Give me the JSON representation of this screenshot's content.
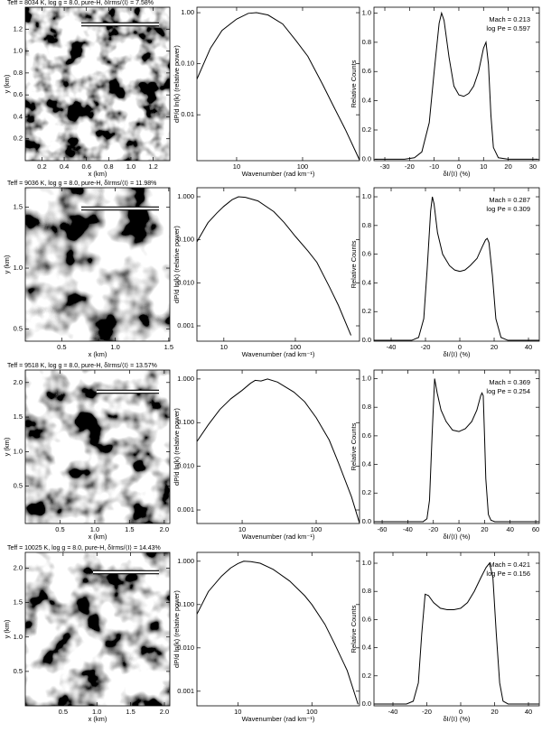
{
  "chart_data": [
    {
      "type": "image",
      "title": "Teff = 8034 K, log g = 8.0, pure-H, δIrms/⟨I⟩ = 7.58%",
      "xlabel": "x (km)",
      "ylabel": "y (km)",
      "xlim": [
        0.05,
        1.35
      ],
      "ylim": [
        0,
        1.4
      ],
      "xticks": [
        0.2,
        0.4,
        0.6,
        0.8,
        {
          "value": 1,
          "label": "1.0"
        },
        1.2
      ],
      "yticks": [
        0.2,
        0.4,
        0.6,
        0.8,
        {
          "value": 1,
          "label": "1.0"
        },
        1.2
      ]
    },
    {
      "type": "line",
      "xlabel": "Wavenumber (rad km⁻¹)",
      "ylabel": "dP/d ln(k) (relative power)",
      "xscale": "log",
      "yscale": "log",
      "xlim": [
        2.5,
        730
      ],
      "ylim": [
        0.00126,
        1.28
      ],
      "xticks": [
        10,
        100
      ],
      "yticks": [
        {
          "value": 1,
          "label": "1.00"
        },
        {
          "value": 0.1,
          "label": "0.10"
        },
        {
          "value": 0.01,
          "label": "0.01"
        }
      ],
      "x": [
        2.5,
        4,
        6,
        10,
        15,
        20,
        30,
        50,
        80,
        120,
        200,
        300,
        450,
        730
      ],
      "values": [
        0.05,
        0.2,
        0.45,
        0.75,
        0.97,
        1.0,
        0.9,
        0.6,
        0.28,
        0.14,
        0.04,
        0.014,
        0.005,
        0.0013
      ]
    },
    {
      "type": "line",
      "xlabel": "δI/⟨I⟩ (%)",
      "ylabel": "Relative Counts",
      "annotations": [
        "Mach = 0.213",
        "log Pe = 0.597"
      ],
      "xlim": [
        -34.4,
        32.6
      ],
      "ylim": [
        -0.01,
        1.04
      ],
      "xticks": [
        -30,
        -20,
        -10,
        0,
        10,
        20,
        30
      ],
      "yticks": [
        {
          "value": 0,
          "label": "0.0"
        },
        0.2,
        0.4,
        0.6,
        0.8,
        {
          "value": 1,
          "label": "1.0"
        }
      ],
      "x": [
        -34,
        -22,
        -18,
        -15,
        -12,
        -10,
        -8,
        -7,
        -6,
        -4,
        -2,
        0,
        2,
        4,
        6,
        8,
        9,
        10,
        11,
        12,
        13,
        14,
        16,
        20,
        32
      ],
      "values": [
        0,
        0,
        0.01,
        0.05,
        0.25,
        0.6,
        0.93,
        1.0,
        0.95,
        0.7,
        0.5,
        0.44,
        0.43,
        0.45,
        0.5,
        0.6,
        0.68,
        0.76,
        0.8,
        0.65,
        0.3,
        0.08,
        0.01,
        0,
        0
      ]
    },
    {
      "type": "image",
      "title": "Teff = 9036 K, log g = 8.0, pure-H, δIrms/⟨I⟩ = 11.98%",
      "xlabel": "x (km)",
      "ylabel": "y (km)",
      "xlim": [
        0.16,
        1.51
      ],
      "ylim": [
        0.4,
        1.66
      ],
      "xticks": [
        0.5,
        {
          "value": 1,
          "label": "1.0"
        },
        1.5
      ],
      "yticks": [
        0.5,
        {
          "value": 1,
          "label": "1.0"
        },
        1.5
      ]
    },
    {
      "type": "line",
      "xlabel": "Wavenumber (rad km⁻¹)",
      "ylabel": "dP/d ln(k) (relative power)",
      "xscale": "log",
      "yscale": "log",
      "xlim": [
        4.2,
        790
      ],
      "ylim": [
        0.00044,
        1.62
      ],
      "xticks": [
        10,
        100
      ],
      "yticks": [
        {
          "value": 1,
          "label": "1.000"
        },
        {
          "value": 0.1,
          "label": "0.100"
        },
        {
          "value": 0.01,
          "label": "0.010"
        },
        {
          "value": 0.001,
          "label": "0.001"
        }
      ],
      "x": [
        4.2,
        6,
        8,
        10,
        13,
        16,
        20,
        30,
        50,
        70,
        100,
        150,
        200,
        300,
        400,
        600
      ],
      "values": [
        0.09,
        0.25,
        0.42,
        0.6,
        0.85,
        1.0,
        0.97,
        0.8,
        0.45,
        0.25,
        0.12,
        0.055,
        0.03,
        0.008,
        0.003,
        0.0006
      ]
    },
    {
      "type": "line",
      "xlabel": "δI/⟨I⟩ (%)",
      "ylabel": "Relative Counts",
      "annotations": [
        "Mach = 0.287",
        "log Pe = 0.309"
      ],
      "xlim": [
        -50,
        46.3
      ],
      "ylim": [
        -0.006,
        1.063
      ],
      "xticks": [
        -40,
        -20,
        0,
        20,
        40
      ],
      "yticks": [
        {
          "value": 0,
          "label": "0.0"
        },
        0.2,
        0.4,
        0.6,
        0.8,
        {
          "value": 1,
          "label": "1.0"
        }
      ],
      "x": [
        -50,
        -28,
        -24,
        -21,
        -19,
        -17,
        -16,
        -15,
        -13,
        -10,
        -6,
        -3,
        0,
        3,
        6,
        10,
        13,
        15,
        16,
        17,
        19,
        21,
        24,
        28,
        46
      ],
      "values": [
        0,
        0,
        0.02,
        0.15,
        0.5,
        0.9,
        1.0,
        0.95,
        0.75,
        0.6,
        0.52,
        0.49,
        0.48,
        0.49,
        0.52,
        0.57,
        0.65,
        0.7,
        0.71,
        0.68,
        0.45,
        0.15,
        0.02,
        0,
        0
      ]
    },
    {
      "type": "image",
      "title": "Teff = 9518 K, log g = 8.0, pure-H, δIrms/⟨I⟩ = 13.57%",
      "xlabel": "x (km)",
      "ylabel": "y (km)",
      "xlim": [
        0,
        2.08
      ],
      "ylim": [
        -0.04,
        2.18
      ],
      "xticks": [
        0.5,
        {
          "value": 1,
          "label": "1.0"
        },
        1.5,
        {
          "value": 2,
          "label": "2.0"
        }
      ],
      "yticks": [
        0.5,
        {
          "value": 1,
          "label": "1.0"
        },
        1.5,
        {
          "value": 2,
          "label": "2.0"
        }
      ]
    },
    {
      "type": "line",
      "xlabel": "Wavenumber (rad km⁻¹)",
      "ylabel": "dP/d ln(k) (relative power)",
      "xscale": "log",
      "yscale": "log",
      "xlim": [
        2.45,
        385
      ],
      "ylim": [
        0.00049,
        1.6
      ],
      "xticks": [
        10,
        100
      ],
      "yticks": [
        {
          "value": 1,
          "label": "1.000"
        },
        {
          "value": 0.1,
          "label": "0.100"
        },
        {
          "value": 0.01,
          "label": "0.010"
        },
        {
          "value": 0.001,
          "label": "0.001"
        }
      ],
      "x": [
        2.45,
        3.5,
        5,
        7,
        10,
        13,
        15,
        18,
        22,
        30,
        50,
        70,
        100,
        150,
        200,
        300,
        385
      ],
      "values": [
        0.037,
        0.09,
        0.2,
        0.35,
        0.55,
        0.8,
        0.93,
        0.9,
        1.0,
        0.85,
        0.5,
        0.3,
        0.13,
        0.04,
        0.012,
        0.002,
        0.0005
      ]
    },
    {
      "type": "line",
      "xlabel": "δI/⟨I⟩ (%)",
      "ylabel": "Relative Counts",
      "annotations": [
        "Mach = 0.369",
        "log Pe = 0.254"
      ],
      "xlim": [
        -66.4,
        62.8
      ],
      "ylim": [
        -0.013,
        1.06
      ],
      "xticks": [
        -60,
        -40,
        -20,
        0,
        20,
        40,
        60
      ],
      "yticks": [
        {
          "value": 0,
          "label": "0.0"
        },
        0.2,
        0.4,
        0.6,
        0.8,
        {
          "value": 1,
          "label": "1.0"
        }
      ],
      "x": [
        -66,
        -28,
        -25,
        -23,
        -21,
        -19,
        -17,
        -14,
        -10,
        -5,
        0,
        5,
        10,
        14,
        17,
        18,
        19,
        20,
        21,
        23,
        25,
        28,
        62
      ],
      "values": [
        0,
        0,
        0.02,
        0.15,
        0.6,
        1.0,
        0.9,
        0.78,
        0.7,
        0.64,
        0.63,
        0.65,
        0.7,
        0.78,
        0.88,
        0.9,
        0.88,
        0.6,
        0.3,
        0.05,
        0.01,
        0,
        0
      ]
    },
    {
      "type": "image",
      "title": "Teff = 10025 K, log g = 8.0, pure-H, δIrms/⟨I⟩ = 14.43%",
      "xlabel": "x (km)",
      "ylabel": "y (km)",
      "xlim": [
        -0.06,
        2.08
      ],
      "ylim": [
        0,
        2.23
      ],
      "xticks": [
        0.5,
        {
          "value": 1,
          "label": "1.0"
        },
        1.5,
        {
          "value": 2,
          "label": "2.0"
        }
      ],
      "yticks": [
        0.5,
        {
          "value": 1,
          "label": "1.0"
        },
        1.5,
        {
          "value": 2,
          "label": "2.0"
        }
      ]
    },
    {
      "type": "line",
      "xlabel": "Wavenumber (rad km⁻¹)",
      "ylabel": "dP/d ln(k) (relative power)",
      "xscale": "log",
      "yscale": "log",
      "xlim": [
        2.8,
        440
      ],
      "ylim": [
        0.00046,
        1.6
      ],
      "xticks": [
        10,
        100
      ],
      "yticks": [
        {
          "value": 1,
          "label": "1.000"
        },
        {
          "value": 0.1,
          "label": "0.100"
        },
        {
          "value": 0.01,
          "label": "0.010"
        },
        {
          "value": 0.001,
          "label": "0.001"
        }
      ],
      "x": [
        2.8,
        4,
        6,
        8,
        10,
        12,
        15,
        20,
        30,
        50,
        80,
        100,
        150,
        200,
        300,
        420
      ],
      "values": [
        0.06,
        0.2,
        0.45,
        0.7,
        0.88,
        1.0,
        0.98,
        0.9,
        0.65,
        0.35,
        0.16,
        0.1,
        0.035,
        0.013,
        0.003,
        0.0005
      ]
    },
    {
      "type": "line",
      "xlabel": "δI/⟨I⟩ (%)",
      "ylabel": "Relative Counts",
      "annotations": [
        "Mach = 0.421",
        "log Pe = 0.156"
      ],
      "xlim": [
        -51.2,
        46.4
      ],
      "ylim": [
        -0.013,
        1.077
      ],
      "xticks": [
        -40,
        -20,
        0,
        20,
        40
      ],
      "yticks": [
        {
          "value": 0,
          "label": "0.0"
        },
        0.2,
        0.4,
        0.6,
        0.8,
        {
          "value": 1,
          "label": "1.0"
        }
      ],
      "x": [
        -51,
        -32,
        -28,
        -25,
        -23,
        -21,
        -19,
        -16,
        -12,
        -8,
        -4,
        0,
        4,
        8,
        12,
        15,
        17,
        19,
        21,
        23,
        25,
        28,
        46
      ],
      "values": [
        0,
        0,
        0.02,
        0.15,
        0.5,
        0.78,
        0.77,
        0.72,
        0.68,
        0.67,
        0.67,
        0.68,
        0.72,
        0.8,
        0.9,
        0.97,
        1.0,
        0.9,
        0.5,
        0.15,
        0.02,
        0,
        0
      ]
    }
  ]
}
